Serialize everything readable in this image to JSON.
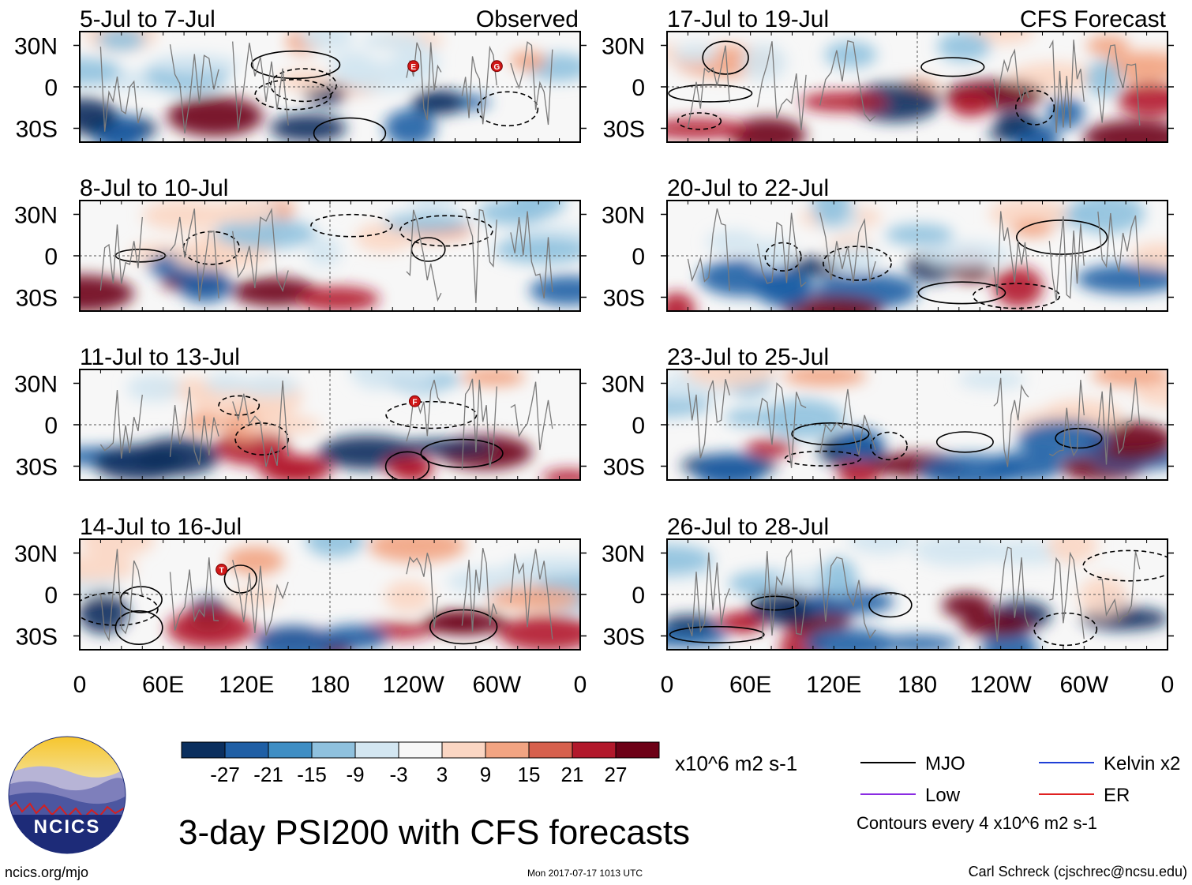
{
  "page": {
    "title": "3-day PSI200 with CFS forecasts",
    "site": "ncics.org/mjo",
    "timestamp": "Mon 2017-07-17 1013 UTC",
    "credit": "Carl Schreck (cjschrec@ncsu.edu)",
    "logo_text": "NCICS"
  },
  "chart_data": {
    "type": "heatmap",
    "title": "3-day PSI200 with CFS forecasts",
    "variable": "200-hPa streamfunction anomaly (PSI200)",
    "units": "x10^6 m2 s-1",
    "contour_note": "Contours every 4 x10^6 m2 s-1",
    "x_ticks": [
      "0",
      "60E",
      "120E",
      "180",
      "120W",
      "60W",
      "0"
    ],
    "x_range": [
      0,
      360
    ],
    "y_ticks": [
      "30N",
      "0",
      "30S"
    ],
    "y_range": [
      -40,
      40
    ],
    "columns": [
      {
        "label": "Observed",
        "panels": [
          "5-Jul to 7-Jul",
          "8-Jul to 10-Jul",
          "11-Jul to 13-Jul",
          "14-Jul to 16-Jul"
        ]
      },
      {
        "label": "CFS Forecast",
        "panels": [
          "17-Jul to 19-Jul",
          "20-Jul to 22-Jul",
          "23-Jul to 25-Jul",
          "26-Jul to 28-Jul"
        ]
      }
    ],
    "colorbar": {
      "labels": [
        "-27",
        "-21",
        "-15",
        "-9",
        "-3",
        "3",
        "9",
        "15",
        "21",
        "27"
      ],
      "colors": [
        "#0b2f5e",
        "#1f5fa5",
        "#3f8ec4",
        "#8fc1de",
        "#d3e6f1",
        "#f7f7f7",
        "#fbd6c3",
        "#f2a482",
        "#d6604d",
        "#b2182b",
        "#6d0016"
      ]
    },
    "legend": [
      {
        "name": "MJO",
        "color": "#000000"
      },
      {
        "name": "Kelvin x2",
        "color": "#1f3fd6"
      },
      {
        "name": "Low",
        "color": "#8a2be2"
      },
      {
        "name": "ER",
        "color": "#e02020"
      }
    ],
    "storm_markers": [
      {
        "panel": 0,
        "lon": 240,
        "lat": 15,
        "letter": "E"
      },
      {
        "panel": 0,
        "lon": 300,
        "lat": 15,
        "letter": "G"
      },
      {
        "panel": 2,
        "lon": 241,
        "lat": 17,
        "letter": "F"
      },
      {
        "panel": 3,
        "lon": 102,
        "lat": 18,
        "letter": "T"
      }
    ]
  }
}
